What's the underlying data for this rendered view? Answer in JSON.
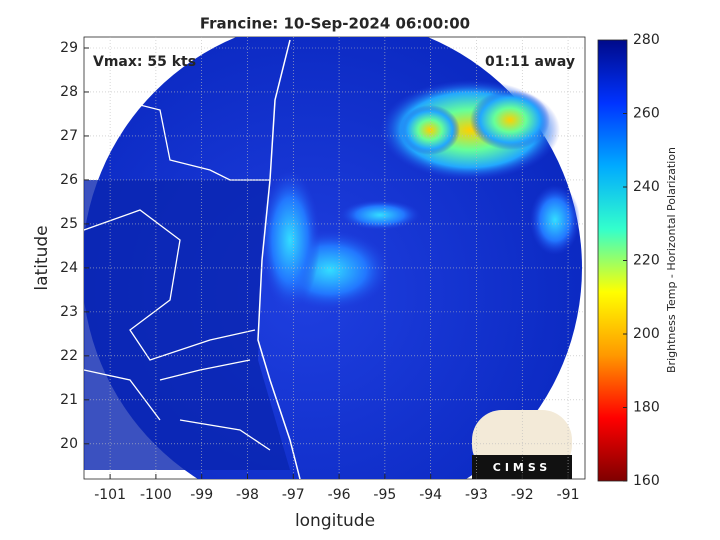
{
  "chart_data": {
    "type": "map",
    "title": "Francine: 10-Sep-2024 06:00:00",
    "annotations": [
      "Vmax: 55 kts",
      "01:11 away"
    ],
    "xlabel": "longitude",
    "ylabel": "latitude",
    "xlim": [
      -101.57,
      -90.63
    ],
    "xticks": [
      -101,
      -100,
      -99,
      -98,
      -97,
      -96,
      -95,
      -94,
      -93,
      -92,
      -91
    ],
    "ylim": [
      19.2,
      29.25
    ],
    "yticks": [
      20,
      21,
      22,
      23,
      24,
      25,
      26,
      27,
      28,
      29
    ],
    "grid": true,
    "colorbar": {
      "label": "Brightness Temp - Horizontal Polarization",
      "lim": [
        160,
        280
      ],
      "ticks": [
        160,
        180,
        200,
        220,
        240,
        260,
        280
      ],
      "colors": [
        "#7f0000",
        "#ff0000",
        "#ff9900",
        "#ffff00",
        "#33ffcc",
        "#00aaff",
        "#0033ff",
        "#000a8a"
      ]
    },
    "logo": "CIMSS"
  }
}
